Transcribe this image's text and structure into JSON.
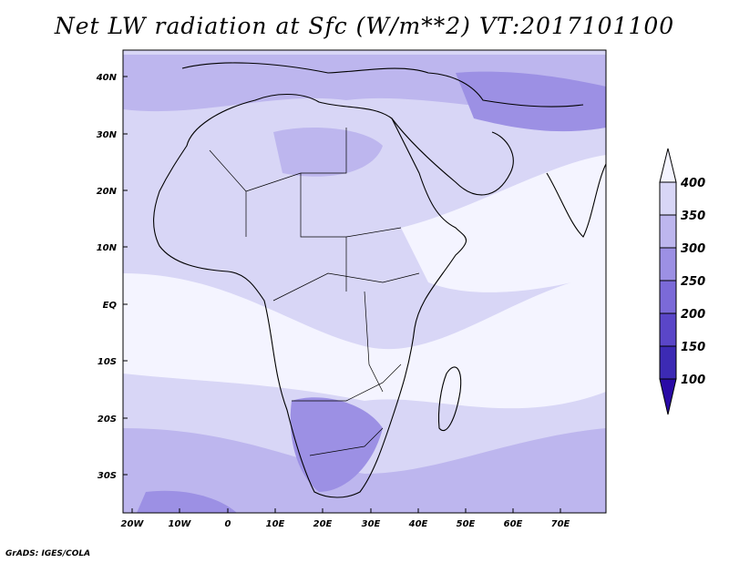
{
  "title": "Net LW radiation at Sfc (W/m**2) VT:2017101100",
  "credit": "GrADS: IGES/COLA",
  "map": {
    "region": "Africa and surrounding seas",
    "projection": "lat-lon",
    "lon_range": [
      -25,
      80
    ],
    "lat_range": [
      -37,
      45
    ],
    "lon_ticks": [
      "20W",
      "10W",
      "0",
      "10E",
      "20E",
      "30E",
      "40E",
      "50E",
      "60E",
      "70E"
    ],
    "lat_ticks": [
      "40N",
      "30N",
      "20N",
      "10N",
      "EQ",
      "10S",
      "20S",
      "30S"
    ],
    "coastlines": true,
    "country_borders": true
  },
  "colorbar": {
    "labels": [
      "100",
      "150",
      "200",
      "250",
      "300",
      "350",
      "400"
    ],
    "levels": [
      100,
      150,
      200,
      250,
      300,
      350,
      400
    ],
    "colors": [
      "#2a0aa6",
      "#3c2ab4",
      "#5a46c8",
      "#7b6ad8",
      "#9c90e4",
      "#bdb6ee",
      "#d8d6f6",
      "#f4f4ff"
    ],
    "extend": "both"
  }
}
